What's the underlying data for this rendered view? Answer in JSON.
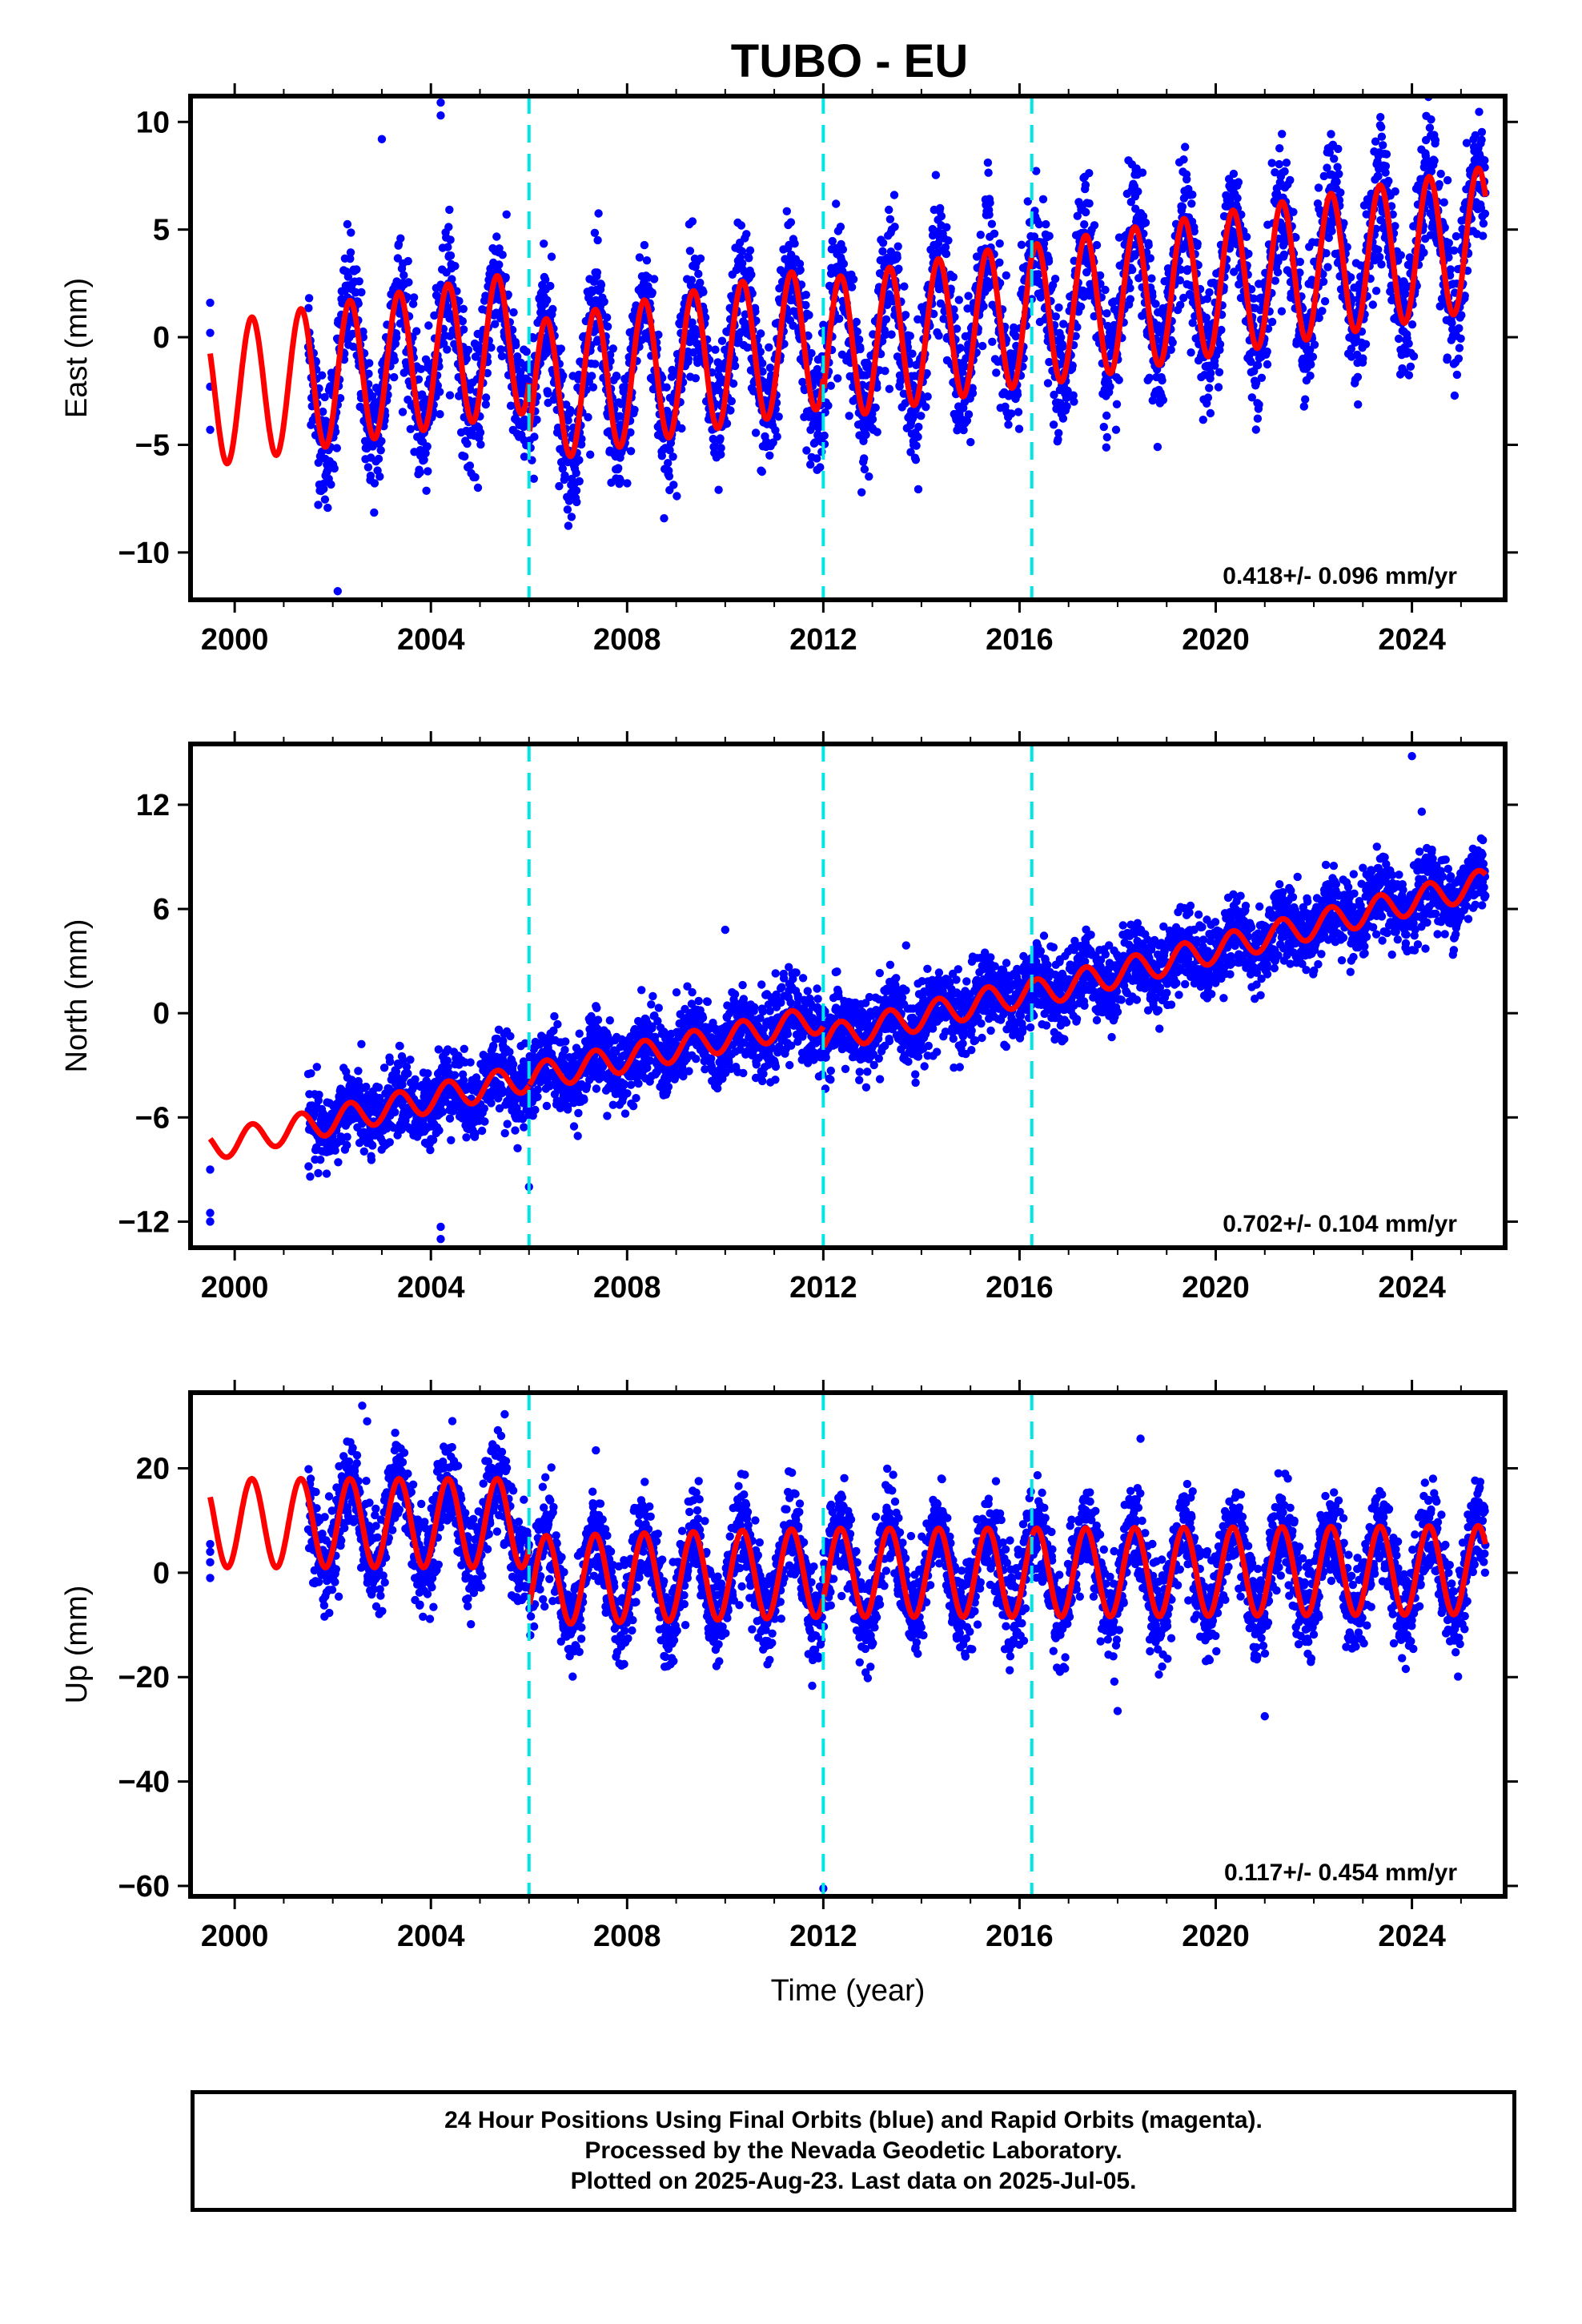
{
  "title": "TUBO - EU",
  "colors": {
    "data": "#0000ff",
    "model": "#ff0000",
    "breaks": "#00e5e5",
    "frame": "#000000"
  },
  "footer": {
    "lines": [
      "24 Hour Positions Using Final Orbits (blue) and Rapid Orbits (magenta).",
      "Processed by the Nevada Geodetic Laboratory.",
      "Plotted on 2025-Aug-23. Last data on 2025-Jul-05."
    ]
  },
  "chart_data": [
    {
      "type": "scatter",
      "component": "East",
      "ylabel": "East (mm)",
      "xlabel": "",
      "xlim": [
        1999.1,
        2025.9
      ],
      "ylim": [
        -12.2,
        11.2
      ],
      "xticks": [
        2000,
        2004,
        2008,
        2012,
        2016,
        2020,
        2024
      ],
      "yticks": [
        -10,
        -5,
        0,
        5,
        10
      ],
      "rate_label": "0.418+/- 0.096 mm/yr",
      "breaks": [
        2006.0,
        2012.0,
        2016.25
      ],
      "model": {
        "trend": [
          [
            1999.5,
            -2.7
          ],
          [
            2006.0,
            -0.2
          ],
          [
            2006.01,
            -2.6
          ],
          [
            2012.0,
            0.0
          ],
          [
            2012.01,
            -0.6
          ],
          [
            2016.25,
            1.1
          ],
          [
            2016.26,
            1.0
          ],
          [
            2025.5,
            4.6
          ]
        ],
        "annual_amplitude": 3.3
      },
      "scatter_spread": 1.5,
      "data_span": [
        2001.5,
        2025.5
      ],
      "early_points": [
        [
          1999.5,
          1.6
        ],
        [
          1999.5,
          -4.3
        ],
        [
          1999.5,
          -2.3
        ],
        [
          1999.5,
          0.2
        ]
      ],
      "outliers": [
        [
          2002.1,
          -11.8
        ],
        [
          2003.0,
          9.2
        ],
        [
          2004.2,
          10.9
        ],
        [
          2004.2,
          10.3
        ]
      ]
    },
    {
      "type": "scatter",
      "component": "North",
      "ylabel": "North (mm)",
      "xlabel": "",
      "xlim": [
        1999.1,
        2025.9
      ],
      "ylim": [
        -13.5,
        15.5
      ],
      "xticks": [
        2000,
        2004,
        2008,
        2012,
        2016,
        2020,
        2024
      ],
      "yticks": [
        -12,
        -6,
        0,
        6,
        12
      ],
      "rate_label": "0.702+/- 0.104 mm/yr",
      "breaks": [
        2006.0,
        2012.0,
        2016.25
      ],
      "model": {
        "trend": [
          [
            1999.5,
            -7.7
          ],
          [
            2006.0,
            -3.7
          ],
          [
            2006.01,
            -3.7
          ],
          [
            2012.0,
            -0.3
          ],
          [
            2012.01,
            -1.5
          ],
          [
            2016.25,
            1.3
          ],
          [
            2016.26,
            1.1
          ],
          [
            2025.5,
            7.5
          ]
        ],
        "annual_amplitude": 0.8
      },
      "scatter_spread": 1.1,
      "data_span": [
        2001.5,
        2025.5
      ],
      "early_points": [
        [
          1999.5,
          -9.0
        ],
        [
          1999.5,
          -11.5
        ],
        [
          1999.5,
          -12.0
        ]
      ],
      "outliers": [
        [
          2004.2,
          -13.0
        ],
        [
          2004.2,
          -12.3
        ],
        [
          2006.0,
          -10.0
        ],
        [
          2010.0,
          4.8
        ],
        [
          2024.0,
          14.8
        ],
        [
          2024.2,
          11.6
        ]
      ]
    },
    {
      "type": "scatter",
      "component": "Up",
      "ylabel": "Up (mm)",
      "xlabel": "Time (year)",
      "xlim": [
        1999.1,
        2025.9
      ],
      "ylim": [
        -62.0,
        34.5
      ],
      "xticks": [
        2000,
        2004,
        2008,
        2012,
        2016,
        2020,
        2024
      ],
      "yticks": [
        -60,
        -40,
        -20,
        0,
        20
      ],
      "rate_label": "0.117+/- 0.454 mm/yr",
      "breaks": [
        2006.0,
        2012.0,
        2016.25
      ],
      "model": {
        "trend": [
          [
            1999.5,
            9.5
          ],
          [
            2006.0,
            9.5
          ],
          [
            2006.01,
            -1.5
          ],
          [
            2012.0,
            0.0
          ],
          [
            2012.01,
            0.0
          ],
          [
            2016.25,
            0.0
          ],
          [
            2016.26,
            0.0
          ],
          [
            2025.5,
            0.5
          ]
        ],
        "annual_amplitude": 8.5
      },
      "scatter_spread": 4.5,
      "data_span": [
        2001.5,
        2025.5
      ],
      "early_points": [
        [
          1999.5,
          4.0
        ],
        [
          1999.5,
          2.0
        ],
        [
          1999.5,
          -1.0
        ],
        [
          1999.5,
          5.5
        ]
      ],
      "outliers": [
        [
          2002.6,
          32.0
        ],
        [
          2002.7,
          29.0
        ],
        [
          2012.0,
          -60.5
        ],
        [
          2021.0,
          -27.5
        ],
        [
          2018.0,
          -26.5
        ]
      ]
    }
  ]
}
